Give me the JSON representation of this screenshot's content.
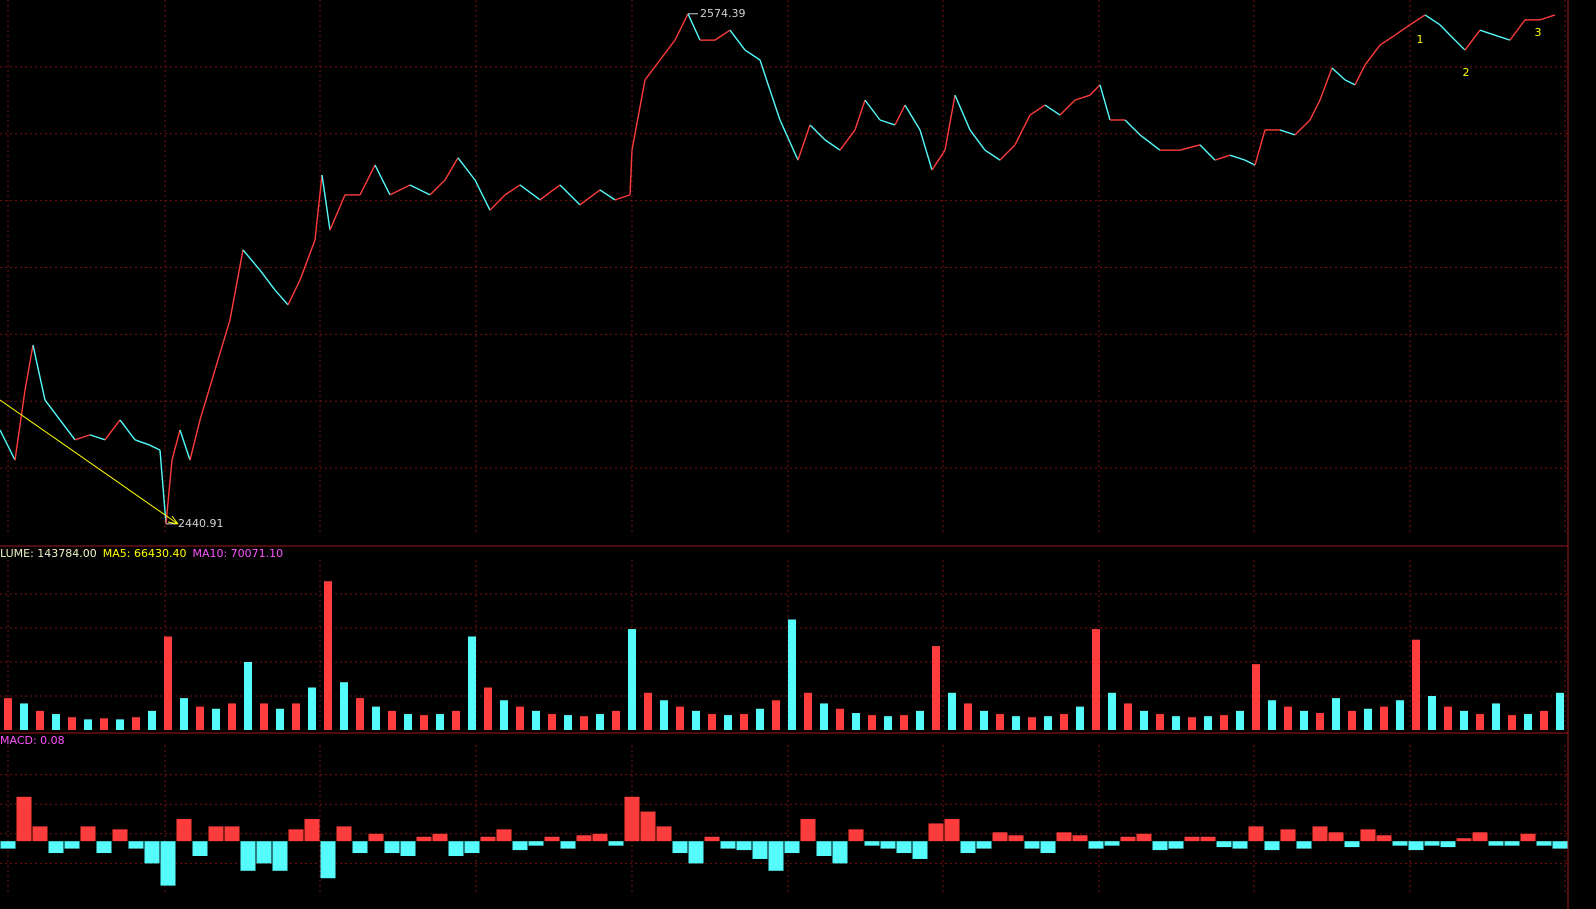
{
  "chart_data": [
    {
      "type": "line",
      "x": [
        0,
        7.5,
        12.5,
        16.5,
        22.5,
        30,
        37.5,
        45,
        52.5,
        60,
        67.5,
        75,
        80,
        83,
        86,
        90,
        95,
        100,
        107.5,
        115,
        121.5,
        130,
        137.5,
        144,
        150,
        157.5,
        161,
        165,
        172.5,
        180,
        187.5,
        195,
        205,
        215,
        222.5,
        229,
        237.5,
        245,
        252.5,
        260,
        270,
        280,
        290,
        300,
        307.5,
        315,
        316,
        322.5,
        330,
        337.5,
        344,
        350,
        357.5,
        365,
        372.5,
        380,
        385,
        390,
        399,
        405,
        412.5,
        420,
        427.5,
        432.5,
        440,
        447.5,
        452.5,
        460,
        466,
        472.5,
        477.5,
        485,
        492.5,
        500,
        507.5,
        515,
        522.5,
        530,
        537.5,
        545,
        550,
        555,
        562.5,
        570,
        580,
        590,
        600,
        607.5,
        615,
        622.5,
        627.5,
        632.5,
        640,
        647.5,
        655,
        660,
        666,
        672.5,
        677.5,
        682.5,
        690,
        697.5,
        705,
        712.5,
        720,
        725,
        732.5,
        740,
        747.5,
        755,
        762.5,
        770,
        777.5
      ],
      "values": [
        2465.5,
        2457.6,
        2475.9,
        2487.7,
        2473.3,
        2468.1,
        2462.9,
        2464.2,
        2462.9,
        2468.1,
        2462.9,
        2461.5,
        2460.2,
        2440.91,
        2457.6,
        2465.5,
        2457.6,
        2468.1,
        2481.2,
        2494.3,
        2512.6,
        2507.3,
        2502.1,
        2498.2,
        2504.7,
        2515.2,
        2532.2,
        2517.8,
        2527.0,
        2527.0,
        2534.8,
        2527.0,
        2529.6,
        2527.0,
        2530.9,
        2536.7,
        2530.9,
        2523.0,
        2527.0,
        2529.6,
        2525.7,
        2529.6,
        2524.4,
        2528.3,
        2525.7,
        2527.0,
        2538.7,
        2557.1,
        2562.3,
        2567.5,
        2574.39,
        2567.5,
        2567.5,
        2570.1,
        2564.9,
        2562.3,
        2554.4,
        2546.6,
        2536.1,
        2545.3,
        2541.4,
        2538.7,
        2544.0,
        2551.8,
        2546.6,
        2545.3,
        2550.5,
        2544.0,
        2533.5,
        2538.7,
        2553.1,
        2544.0,
        2538.7,
        2536.1,
        2540.1,
        2547.9,
        2550.5,
        2547.9,
        2551.8,
        2553.1,
        2555.8,
        2546.6,
        2546.6,
        2542.7,
        2538.7,
        2538.7,
        2540.1,
        2536.1,
        2537.4,
        2536.1,
        2534.8,
        2544.0,
        2544.0,
        2542.7,
        2546.6,
        2551.8,
        2560.2,
        2557.1,
        2555.8,
        2561.0,
        2566.2,
        2568.8,
        2571.5,
        2574.1,
        2571.5,
        2568.8,
        2564.9,
        2570.1,
        2568.8,
        2567.5,
        2572.8,
        2572.8,
        2574.1
      ],
      "xlim": [
        0,
        784
      ],
      "ylim": [
        2438,
        2578
      ],
      "colors": {
        "up": "#ff3c3c",
        "down": "#54fcfc"
      },
      "annotations": [
        {
          "label": "2574.39",
          "value": 2574.39,
          "x": 344
        },
        {
          "label": "2440.91",
          "value": 2440.91,
          "x": 83
        }
      ],
      "wave_labels": [
        "1",
        "2",
        "3"
      ],
      "grid": true
    },
    {
      "type": "bar",
      "legend": [
        {
          "text": "LUME: 143784.00",
          "color": "#f0f0c8"
        },
        {
          "text": "MA5: 66430.40",
          "color": "#ffff00"
        },
        {
          "text": "MA10: 70071.10",
          "color": "#ff54ff"
        }
      ],
      "x": [
        4,
        12,
        20,
        28,
        36,
        44,
        52,
        60,
        68,
        76,
        84,
        92,
        100,
        108,
        116,
        124,
        132,
        140,
        148,
        156,
        164,
        172,
        180,
        188,
        196,
        204,
        212,
        220,
        228,
        236,
        244,
        252,
        260,
        268,
        276,
        284,
        292,
        300,
        308,
        316,
        324,
        332,
        340,
        348,
        356,
        364,
        372,
        380,
        388,
        396,
        404,
        412,
        420,
        428,
        436,
        444,
        452,
        460,
        468,
        476,
        484,
        492,
        500,
        508,
        516,
        524,
        532,
        540,
        548,
        556,
        564,
        572,
        580,
        588,
        596,
        604,
        612,
        620,
        628,
        636,
        644,
        652,
        660,
        668,
        676,
        684,
        692,
        700,
        708,
        716,
        724,
        732,
        740,
        748,
        756,
        764,
        772,
        780
      ],
      "values": [
        30000,
        25000,
        18000,
        15000,
        12000,
        10000,
        11000,
        10000,
        12000,
        18000,
        88000,
        30000,
        22000,
        20000,
        25000,
        64000,
        25000,
        20000,
        25000,
        40000,
        140000,
        45000,
        30000,
        22000,
        18000,
        15000,
        14000,
        15000,
        18000,
        88000,
        40000,
        28000,
        22000,
        18000,
        15000,
        14000,
        13000,
        15000,
        18000,
        95000,
        35000,
        28000,
        22000,
        18000,
        15000,
        14000,
        15000,
        20000,
        28000,
        104000,
        35000,
        25000,
        20000,
        16000,
        14000,
        13000,
        14000,
        18000,
        79000,
        35000,
        25000,
        18000,
        15000,
        13000,
        12000,
        13000,
        15000,
        22000,
        95000,
        35000,
        25000,
        18000,
        15000,
        13000,
        12000,
        13000,
        14000,
        18000,
        62000,
        28000,
        22000,
        18000,
        16000,
        30000,
        18000,
        20000,
        22000,
        28000,
        85000,
        32000,
        22000,
        18000,
        15000,
        25000,
        14000,
        15000,
        18000,
        35000
      ],
      "xlim": [
        0,
        784
      ],
      "ylim": [
        0,
        160000
      ],
      "colors": [
        "#ff3c3c",
        "#54fcfc"
      ],
      "grid": true
    },
    {
      "type": "bar",
      "legend": [
        {
          "text": "MACD: 0.08",
          "color": "#ff54ff"
        }
      ],
      "x": [
        4,
        12,
        20,
        28,
        36,
        44,
        52,
        60,
        68,
        76,
        84,
        92,
        100,
        108,
        116,
        124,
        132,
        140,
        148,
        156,
        164,
        172,
        180,
        188,
        196,
        204,
        212,
        220,
        228,
        236,
        244,
        252,
        260,
        268,
        276,
        284,
        292,
        300,
        308,
        316,
        324,
        332,
        340,
        348,
        356,
        364,
        372,
        380,
        388,
        396,
        404,
        412,
        420,
        428,
        436,
        444,
        452,
        460,
        468,
        476,
        484,
        492,
        500,
        508,
        516,
        524,
        532,
        540,
        548,
        556,
        564,
        572,
        580,
        588,
        596,
        604,
        612,
        620,
        628,
        636,
        644,
        652,
        660,
        668,
        676,
        684,
        692,
        700,
        708,
        716,
        724,
        732,
        740,
        748,
        756,
        764,
        772,
        780
      ],
      "values": [
        -0.5,
        3,
        1,
        -0.8,
        -0.5,
        1,
        -0.8,
        0.8,
        -0.5,
        -1.5,
        -3,
        1.5,
        -1,
        1,
        1,
        -2,
        -1.5,
        -2,
        0.8,
        1.5,
        -2.5,
        1,
        -0.8,
        0.5,
        -0.8,
        -1,
        0.3,
        0.5,
        -1,
        -0.8,
        0.3,
        0.8,
        -0.6,
        -0.3,
        0.3,
        -0.5,
        0.4,
        0.5,
        -0.3,
        3,
        2,
        1,
        -0.8,
        -1.5,
        0.3,
        -0.5,
        -0.6,
        -1.2,
        -2,
        -0.8,
        1.5,
        -1,
        -1.5,
        0.8,
        -0.3,
        -0.5,
        -0.8,
        -1.2,
        1.2,
        1.5,
        -0.8,
        -0.5,
        0.6,
        0.4,
        -0.5,
        -0.8,
        0.6,
        0.4,
        -0.5,
        -0.3,
        0.3,
        0.5,
        -0.6,
        -0.5,
        0.3,
        0.3,
        -0.4,
        -0.5,
        1,
        -0.6,
        0.8,
        -0.5,
        1,
        0.6,
        -0.4,
        0.8,
        0.4,
        -0.3,
        -0.6,
        -0.3,
        -0.4,
        0.2,
        0.6,
        -0.3,
        -0.3,
        0.5,
        -0.3,
        -0.5
      ],
      "xlim": [
        0,
        784
      ],
      "ylim": [
        -3.5,
        6.5
      ],
      "colors": {
        "positive": "#ff3c3c",
        "negative": "#54fcfc"
      },
      "grid": true
    }
  ]
}
